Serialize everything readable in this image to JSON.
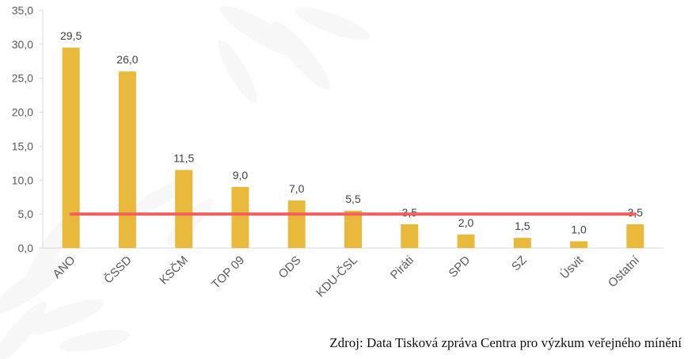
{
  "chart_data": {
    "type": "bar",
    "categories": [
      "ANO",
      "ČSSD",
      "KSČM",
      "TOP 09",
      "ODS",
      "KDU-ČSL",
      "Piráti",
      "SPD",
      "SZ",
      "Úsvit",
      "Ostatní"
    ],
    "values": [
      29.5,
      26.0,
      11.5,
      9.0,
      7.0,
      5.5,
      3.5,
      2.0,
      1.5,
      1.0,
      3.5
    ],
    "value_labels": [
      "29,5",
      "26,0",
      "11,5",
      "9,0",
      "7,0",
      "5,5",
      "3,5",
      "2,0",
      "1,5",
      "1,0",
      "3,5"
    ],
    "ylim": [
      0,
      35
    ],
    "yticks": [
      0,
      5,
      10,
      15,
      20,
      25,
      30,
      35
    ],
    "ytick_labels": [
      "0,0",
      "5,0",
      "10,0",
      "15,0",
      "20,0",
      "25,0",
      "30,0",
      "35,0"
    ],
    "reference_line": 5,
    "grid": false,
    "bar_color": "#E8B93A",
    "reference_line_color": "#F26060",
    "source": "Zdroj: Data Tisková zpráva Centra pro výzkum veřejného mínění"
  }
}
